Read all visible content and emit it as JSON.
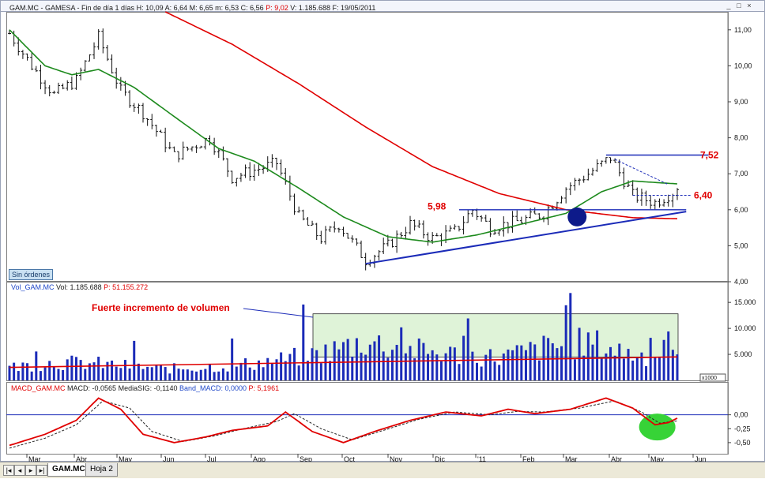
{
  "header": {
    "title": "GAM.MC - GAMESA - Fin de día 1 días",
    "ohlc": "H: 10,09  A: 6,64  M: 6,65  m: 6,53  C: 6,56",
    "p_value": "P: 9,02",
    "volume_date": "V: 1.185.688  F: 19/05/2011",
    "buttons": [
      "_",
      "□",
      "×"
    ]
  },
  "status_badge": "Sin órdenes",
  "volume_legend": {
    "name": "Vol_GAM.MC",
    "vol": "Vol: 1.185.688",
    "p": "P: 51.155.272",
    "unit": "x1000"
  },
  "macd_legend": {
    "name": "MACD_GAM.MC",
    "macd": "MACD: -0,0565",
    "signal": "MediaSIG: -0,1140",
    "band": "Band_MACD: 0,0000",
    "p": "P: 5,1961"
  },
  "tabs": {
    "nav": [
      "|◂",
      "◂",
      "▸",
      "▸|"
    ],
    "active": "GAM.MC",
    "inactive": "Hoja 2"
  },
  "chart_data": [
    {
      "type": "ohlc",
      "title": "GAM.MC - GAMESA",
      "ylim": [
        4,
        11.5
      ],
      "yticks": [
        "11,00",
        "10,00",
        "9,00",
        "8,00",
        "7,00",
        "6,00",
        "5,00",
        "4,00"
      ],
      "x_months": [
        "Mar",
        "Abr",
        "May",
        "Jun",
        "Jul",
        "Ago",
        "Sep",
        "Oct",
        "Nov",
        "Dic",
        "'11",
        "Feb",
        "Mar",
        "Abr",
        "May",
        "Jun"
      ],
      "price_anchors": [
        [
          0,
          10.9
        ],
        [
          5,
          10.0
        ],
        [
          10,
          9.2
        ],
        [
          15,
          9.6
        ],
        [
          20,
          10.8
        ],
        [
          25,
          9.3
        ],
        [
          30,
          8.7
        ],
        [
          37,
          7.5
        ],
        [
          45,
          8.0
        ],
        [
          50,
          6.9
        ],
        [
          60,
          7.3
        ],
        [
          65,
          5.8
        ],
        [
          70,
          5.2
        ],
        [
          74,
          5.6
        ],
        [
          80,
          4.6
        ],
        [
          85,
          5.0
        ],
        [
          90,
          5.6
        ],
        [
          95,
          5.2
        ],
        [
          100,
          5.4
        ],
        [
          104,
          6.0
        ],
        [
          108,
          5.5
        ],
        [
          115,
          5.7
        ],
        [
          120,
          5.9
        ],
        [
          125,
          6.6
        ],
        [
          130,
          7.0
        ],
        [
          135,
          7.45
        ],
        [
          140,
          6.4
        ],
        [
          145,
          6.2
        ],
        [
          150,
          6.56
        ]
      ],
      "series": [
        {
          "name": "MA largo (rojo)",
          "color": "#e00000",
          "points": [
            [
              35,
              11.5
            ],
            [
              50,
              10.6
            ],
            [
              65,
              9.5
            ],
            [
              80,
              8.3
            ],
            [
              95,
              7.2
            ],
            [
              110,
              6.45
            ],
            [
              125,
              6.0
            ],
            [
              140,
              5.78
            ],
            [
              150,
              5.75
            ]
          ]
        },
        {
          "name": "MA medio (verde)",
          "color": "#1d8a1d",
          "points": [
            [
              0,
              11.0
            ],
            [
              8,
              10.0
            ],
            [
              14,
              9.75
            ],
            [
              20,
              9.9
            ],
            [
              28,
              9.4
            ],
            [
              38,
              8.5
            ],
            [
              47,
              7.7
            ],
            [
              55,
              7.35
            ],
            [
              65,
              6.6
            ],
            [
              75,
              5.8
            ],
            [
              85,
              5.25
            ],
            [
              95,
              5.1
            ],
            [
              105,
              5.3
            ],
            [
              115,
              5.6
            ],
            [
              125,
              5.9
            ],
            [
              133,
              6.5
            ],
            [
              140,
              6.8
            ],
            [
              146,
              6.75
            ],
            [
              150,
              6.72
            ]
          ]
        }
      ],
      "annotations": [
        {
          "text": "7,52",
          "value": 7.52,
          "color": "#e00000"
        },
        {
          "text": "6,40",
          "value": 6.4,
          "color": "#e00000"
        },
        {
          "text": "5,98",
          "value": 5.98,
          "color": "#e00000"
        }
      ]
    },
    {
      "type": "bar",
      "title": "Vol_GAM.MC",
      "unit": "x1000",
      "ylim": [
        0,
        17000
      ],
      "yticks": [
        "15.000",
        "10.000",
        "5.000"
      ],
      "average_level": 3000,
      "highlight_text": "Fuerte incremento de volumen",
      "volume_anchors": [
        [
          0,
          2500
        ],
        [
          10,
          3500
        ],
        [
          20,
          3200
        ],
        [
          35,
          2200
        ],
        [
          50,
          2800
        ],
        [
          60,
          3800
        ],
        [
          70,
          5200
        ],
        [
          80,
          7500
        ],
        [
          90,
          5800
        ],
        [
          100,
          5000
        ],
        [
          110,
          4400
        ],
        [
          120,
          6200
        ],
        [
          130,
          7300
        ],
        [
          140,
          5000
        ],
        [
          150,
          4200
        ]
      ]
    },
    {
      "type": "line",
      "title": "MACD_GAM.MC",
      "ylim": [
        -0.7,
        0.42
      ],
      "yticks": [
        "0,00",
        "-0,25",
        "-0,50"
      ],
      "series": [
        {
          "name": "MACD",
          "color": "#e00000",
          "points": [
            [
              0,
              -0.55
            ],
            [
              8,
              -0.35
            ],
            [
              15,
              -0.1
            ],
            [
              20,
              0.3
            ],
            [
              25,
              0.1
            ],
            [
              30,
              -0.35
            ],
            [
              37,
              -0.5
            ],
            [
              44,
              -0.4
            ],
            [
              50,
              -0.28
            ],
            [
              58,
              -0.2
            ],
            [
              62,
              0.05
            ],
            [
              68,
              -0.3
            ],
            [
              75,
              -0.5
            ],
            [
              82,
              -0.3
            ],
            [
              90,
              -0.1
            ],
            [
              98,
              0.05
            ],
            [
              106,
              -0.02
            ],
            [
              112,
              0.1
            ],
            [
              118,
              0.02
            ],
            [
              126,
              0.1
            ],
            [
              134,
              0.3
            ],
            [
              140,
              0.12
            ],
            [
              145,
              -0.18
            ],
            [
              148,
              -0.14
            ],
            [
              150,
              -0.06
            ]
          ]
        },
        {
          "name": "MediaSIG",
          "color": "#222222",
          "points": [
            [
              0,
              -0.6
            ],
            [
              8,
              -0.42
            ],
            [
              15,
              -0.18
            ],
            [
              21,
              0.25
            ],
            [
              27,
              0.12
            ],
            [
              32,
              -0.3
            ],
            [
              39,
              -0.48
            ],
            [
              46,
              -0.38
            ],
            [
              52,
              -0.26
            ],
            [
              60,
              -0.12
            ],
            [
              64,
              0.02
            ],
            [
              70,
              -0.25
            ],
            [
              77,
              -0.45
            ],
            [
              84,
              -0.28
            ],
            [
              92,
              -0.08
            ],
            [
              100,
              0.05
            ],
            [
              108,
              0.0
            ],
            [
              114,
              0.06
            ],
            [
              120,
              0.05
            ],
            [
              128,
              0.12
            ],
            [
              136,
              0.25
            ],
            [
              142,
              0.05
            ],
            [
              146,
              -0.15
            ],
            [
              150,
              -0.11
            ]
          ]
        }
      ]
    }
  ]
}
